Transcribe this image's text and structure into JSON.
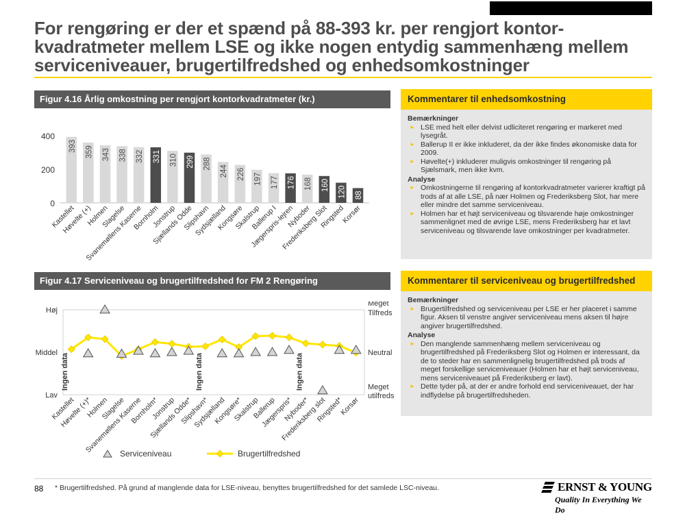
{
  "title": "For rengøring er der et spænd på 88-393 kr. per rengjort kontor-kvadratmeter mellem LSE og ikke nogen entydig sammenhæng mellem serviceniveauer, brugertilfredshed og enhedsomkostninger",
  "figure1": {
    "header": "Figur 4.16 Årlig omkostning per rengjort kontorkvadratmeter (kr.)"
  },
  "figure2": {
    "header": "Figur 4.17 Serviceniveau og brugertilfredshed for FM 2 Rengøring"
  },
  "comment1": {
    "header": "Kommentarer til enhedsomkostning",
    "sec1": "Bemærkninger",
    "bullets1": [
      "LSE med helt eller delvist udliciteret rengøring er markeret med lysegråt.",
      "Ballerup II er ikke inkluderet, da der ikke  findes økonomiske data for  2009.",
      "Høvelte(+) inkluderer muligvis omkostninger til rengøring på Sjælsmark, men ikke kvm."
    ],
    "sec2": "Analyse",
    "bullets2": [
      "Omkostningerne til rengøring af kontorkvadratmeter  varierer kraftigt på trods af at alle LSE, på nær Holmen og Frederiksberg Slot, har  mere eller mindre det samme serviceniveau.",
      "Holmen  har et højt serviceniveau og tilsvarende høje omkostninger sammenlignet med de øvrige LSE, mens Frederiksberg har et lavt serviceniveau og tilsvarende lave omkostninger per kvadratmeter."
    ]
  },
  "comment2": {
    "header": "Kommentarer til serviceniveau og brugertilfredshed",
    "sec1": "Bemærkninger",
    "bullets1": [
      "Brugertilfredshed og serviceniveau per LSE er her placeret i samme figur. Aksen til venstre angiver serviceniveau mens aksen til højre  angiver  brugertilfredshed."
    ],
    "sec2": "Analyse",
    "bullets2": [
      "Den manglende sammenhæng mellem serviceniveau og brugertilfredshed på Frederiksberg Slot og Holmen er interessant, da de to steder har en sammenlignelig brugertilfredshed på trods af meget forskellige serviceniveauer (Holmen har et højt serviceniveau, mens serviceniveauet på Frederiksberg er lavt).",
      "Dette tyder på, at der er andre forhold end serviceniveauet, der har indflydelse på brugertilfredsheden."
    ]
  },
  "chart_data": [
    {
      "type": "bar",
      "title": "Figur 4.16 Årlig omkostning per rengjort kontorkvadratmeter (kr.)",
      "categories": [
        "Kastellet",
        "Høvelte (+)",
        "Holmen",
        "Slagelse",
        "Svanemøllens Kaserne",
        "Bornholm",
        "Jonstrup",
        "Sjællands Odde",
        "Slipshavn",
        "Sydsjælland",
        "Kongsøre",
        "Skalstrup",
        "Ballerup I",
        "Jægerspris-lejren",
        "Nyboder",
        "Frederiksberg Slot",
        "Ringsted",
        "Korsør"
      ],
      "values": [
        393,
        359,
        343,
        338,
        332,
        331,
        310,
        299,
        288,
        244,
        226,
        197,
        177,
        176,
        168,
        160,
        120,
        88
      ],
      "value_labels": [
        "393",
        "359",
        "343",
        "338",
        "332",
        "331",
        "310",
        "299",
        "288",
        "244",
        "226",
        "197",
        "177",
        "176",
        "168",
        "160",
        "120",
        "88"
      ],
      "colors": [
        "#d9d9d9",
        "#d9d9d9",
        "#d9d9d9",
        "#d9d9d9",
        "#d9d9d9",
        "#4d4d4d",
        "#d9d9d9",
        "#4d4d4d",
        "#d9d9d9",
        "#d9d9d9",
        "#d9d9d9",
        "#d9d9d9",
        "#d9d9d9",
        "#4d4d4d",
        "#d9d9d9",
        "#4d4d4d",
        "#4d4d4d",
        "#4d4d4d"
      ],
      "ylim": [
        0,
        400
      ],
      "yticks": [
        0,
        200,
        400
      ],
      "ytick_labels": [
        "0",
        "200",
        "400"
      ]
    },
    {
      "type": "line",
      "title": "Figur 4.17 Serviceniveau og brugertilfredshed for FM 2 Rengøring",
      "categories": [
        "Kastellet",
        "Høvelte (+)*",
        "Holmen",
        "Slagelse",
        "Svanemøllens Kaserne",
        "Bornholm*",
        "Jonstrup",
        "Sjællands Odde*",
        "Slipshavn*",
        "Sydsjælland",
        "Kongsøre*",
        "Skalstrup",
        "Ballerup",
        "Jægerspris*",
        "Nyboder*",
        "Frederiksberg slot",
        "Ringsted*",
        "Korsør"
      ],
      "left_axis_labels": [
        "Høj",
        "Middel",
        "Lav"
      ],
      "right_axis_labels": [
        "Meget Tilfreds",
        "Neutral",
        "Meget utilfreds"
      ],
      "ylim": [
        0,
        2
      ],
      "series": [
        {
          "name": "Serviceniveau",
          "marker": "triangle",
          "values": [
            null,
            0.97,
            2.0,
            0.96,
            1.03,
            0.97,
            1.0,
            1.03,
            null,
            0.97,
            0.97,
            1.0,
            1.0,
            1.05,
            null,
            0.1,
            1.05,
            1.05
          ]
        },
        {
          "name": "Brugertilfredshed",
          "marker": "diamond",
          "color": "#ffe600",
          "values": [
            1.07,
            1.35,
            1.31,
            0.91,
            1.07,
            1.24,
            1.2,
            1.13,
            1.14,
            1.3,
            1.12,
            1.38,
            1.39,
            1.35,
            1.21,
            1.18,
            1.15,
            0.99
          ]
        }
      ],
      "annotations": [
        "Ingen data",
        "Ingen data",
        "Ingen data"
      ],
      "annotation_categories": [
        "Kastellet",
        "Slipshavn*",
        "Nyboder*"
      ],
      "legend": [
        "Serviceniveau",
        "Brugertilfredshed"
      ]
    }
  ],
  "footer": {
    "page_number": "88",
    "footnote": "*  Brugertilfredshed. På grund af manglende data for LSE-niveau, benyttes brugertilfredshed for det samlede LSC-niveau.",
    "logo_name": "ERNST & YOUNG",
    "logo_tagline": "Quality In Everything We Do"
  }
}
